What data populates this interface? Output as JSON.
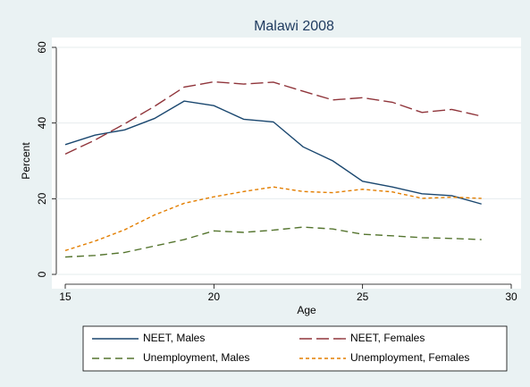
{
  "chart_data": {
    "type": "line",
    "title": "Malawi 2008",
    "x_label": "Age",
    "y_label": "Percent",
    "x": [
      15,
      16,
      17,
      18,
      19,
      20,
      21,
      22,
      23,
      24,
      25,
      26,
      27,
      28,
      29
    ],
    "series": [
      {
        "name": "NEET, Males",
        "color": "#1a476f",
        "dash": "solid",
        "values": [
          34.3,
          36.8,
          38.2,
          41.2,
          45.8,
          44.6,
          41,
          40.3,
          33.7,
          30,
          24.6,
          23.1,
          21.3,
          20.8,
          18.6
        ]
      },
      {
        "name": "NEET, Females",
        "color": "#90353b",
        "dash": "long-dash",
        "values": [
          31.8,
          35.5,
          39.8,
          44.4,
          49.5,
          50.9,
          50.3,
          50.8,
          48.4,
          46.1,
          46.7,
          45.5,
          42.8,
          43.6,
          41.8
        ]
      },
      {
        "name": "Unemployment, Males",
        "color": "#55752f",
        "dash": "dash",
        "values": [
          4.6,
          5,
          5.8,
          7.5,
          9.2,
          11.5,
          11.1,
          11.7,
          12.5,
          12,
          10.6,
          10.2,
          9.7,
          9.5,
          9.2
        ]
      },
      {
        "name": "Unemployment, Females",
        "color": "#e37e00",
        "dash": "short-dash",
        "values": [
          6.3,
          8.8,
          11.8,
          15.7,
          18.8,
          20.5,
          21.9,
          23.1,
          21.9,
          21.6,
          22.5,
          21.8,
          20.1,
          20.4,
          20.1
        ]
      }
    ],
    "xlim": [
      15,
      30
    ],
    "xticks": [
      15,
      20,
      25,
      30
    ],
    "ylim": [
      0,
      60
    ],
    "yticks": [
      0,
      20,
      40,
      60
    ],
    "grid": true,
    "legend": "bottom"
  }
}
